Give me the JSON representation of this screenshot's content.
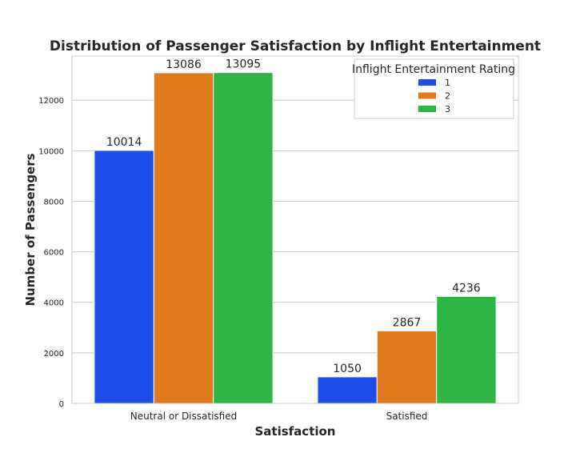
{
  "chart_data": {
    "type": "bar",
    "title": "Distribution of Passenger Satisfaction by Inflight Entertainment",
    "xlabel": "Satisfaction",
    "ylabel": "Number of Passengers",
    "categories": [
      "Neutral or Dissatisfied",
      "Satisfied"
    ],
    "series": [
      {
        "name": "1",
        "values": [
          10014,
          1050
        ],
        "color": "#1f4ded"
      },
      {
        "name": "2",
        "values": [
          13086,
          2867
        ],
        "color": "#e07a1c"
      },
      {
        "name": "3",
        "values": [
          13095,
          4236
        ],
        "color": "#2db545"
      }
    ],
    "legend_title": "Inflight Entertainment Rating",
    "legend_position": "top-right",
    "yticks": [
      0,
      2000,
      4000,
      6000,
      8000,
      10000,
      12000
    ],
    "ylim": [
      0,
      13750
    ],
    "grid": "horizontal"
  }
}
